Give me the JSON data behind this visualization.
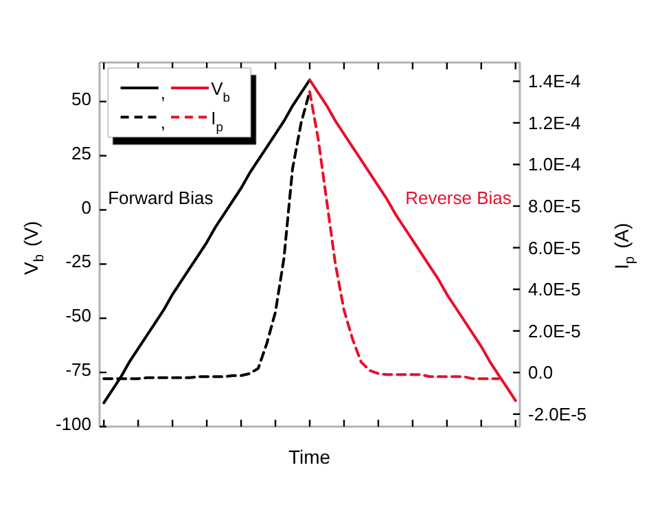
{
  "chart_data": {
    "type": "line",
    "xlabel": "Time",
    "ylabel": "V$_{b}$ (V)",
    "y2label": "I$_{p}$ (A)",
    "categories": [
      null,
      null,
      null,
      null,
      null,
      null,
      null,
      null,
      null,
      null,
      null,
      null,
      null,
      null,
      null,
      null,
      null,
      null,
      null,
      null,
      null,
      null,
      null,
      null,
      null,
      null,
      null,
      null,
      null,
      null,
      null,
      null,
      null,
      null,
      null,
      null,
      null,
      null,
      null,
      null,
      null,
      null,
      null,
      null,
      null,
      null,
      null,
      null,
      null
    ],
    "ylim": [
      -100,
      68
    ],
    "yticks": [
      -100,
      -75,
      -50,
      -25,
      0,
      25,
      50
    ],
    "y2lim": [
      -2.6e-05,
      0.000149
    ],
    "y2ticks": [
      {
        "value": -2e-05,
        "label": "-2.0E-5"
      },
      {
        "value": 0,
        "label": "0.0"
      },
      {
        "value": 2e-05,
        "label": "2.0E-5"
      },
      {
        "value": 4e-05,
        "label": "4.0E-5"
      },
      {
        "value": 6e-05,
        "label": "6.0E-5"
      },
      {
        "value": 8e-05,
        "label": "8.0E-5"
      },
      {
        "value": 0.0001,
        "label": "1.0E-4"
      },
      {
        "value": 0.00012,
        "label": "1.2E-4"
      },
      {
        "value": 0.00014,
        "label": "1.4E-4"
      }
    ],
    "tick_labels": "y",
    "grid": false,
    "legend": "top left",
    "series": [
      {
        "name": ",",
        "color": "#000000",
        "line_style": "solid",
        "values": [
          -89,
          -83,
          -77,
          -70,
          -64,
          -58,
          -52,
          -46,
          -39,
          -33,
          -27,
          -21,
          -15,
          -8,
          -2,
          4,
          10,
          17,
          23,
          29,
          35,
          41,
          48,
          54,
          60,
          null,
          null,
          null,
          null,
          null,
          null,
          null,
          null,
          null,
          null,
          null,
          null,
          null,
          null,
          null,
          null,
          null,
          null,
          null,
          null,
          null,
          null,
          null,
          null
        ]
      },
      {
        "name": "V$_{b}$",
        "color": "#e8102a",
        "line_style": "solid",
        "values": [
          null,
          null,
          null,
          null,
          null,
          null,
          null,
          null,
          null,
          null,
          null,
          null,
          null,
          null,
          null,
          null,
          null,
          null,
          null,
          null,
          null,
          null,
          null,
          null,
          60,
          54,
          48,
          41,
          35,
          29,
          23,
          17,
          11,
          5,
          -2,
          -8,
          -14,
          -20,
          -26,
          -32,
          -39,
          -45,
          -51,
          -57,
          -63,
          -70,
          -76,
          -82,
          -88
        ]
      },
      {
        "name": ",",
        "color": "#000000",
        "line_style": "dashed",
        "axis": "y2",
        "values": [
          -3e-06,
          -3e-06,
          -3e-06,
          -3e-06,
          -3e-06,
          -2.5e-06,
          -2.5e-06,
          -2.5e-06,
          -2.5e-06,
          -2.5e-06,
          -2.5e-06,
          -2e-06,
          -2e-06,
          -2e-06,
          -2e-06,
          -1.5e-06,
          -1.5e-06,
          -5e-07,
          2e-06,
          1.4e-05,
          2.9e-05,
          5.5e-05,
          9.8e-05,
          0.00012,
          0.000135,
          null,
          null,
          null,
          null,
          null,
          null,
          null,
          null,
          null,
          null,
          null,
          null,
          null,
          null,
          null,
          null,
          null,
          null,
          null,
          null,
          null,
          null,
          null,
          null
        ]
      },
      {
        "name": "I$_{p}$",
        "color": "#e8102a",
        "line_style": "dashed",
        "axis": "y2",
        "values": [
          null,
          null,
          null,
          null,
          null,
          null,
          null,
          null,
          null,
          null,
          null,
          null,
          null,
          null,
          null,
          null,
          null,
          null,
          null,
          null,
          null,
          null,
          null,
          null,
          0.000135,
          0.000112,
          8.2e-05,
          5.2e-05,
          3e-05,
          1.6e-05,
          5e-06,
          1e-06,
          -5e-07,
          -1e-06,
          -1e-06,
          -1e-06,
          -1e-06,
          -1e-06,
          -2e-06,
          -2e-06,
          -2e-06,
          -2e-06,
          -2e-06,
          -3e-06,
          -3e-06,
          -3e-06,
          -3e-06,
          null,
          null
        ]
      }
    ],
    "annotations": [
      "Forward Bias",
      "Reverse Bias"
    ]
  }
}
